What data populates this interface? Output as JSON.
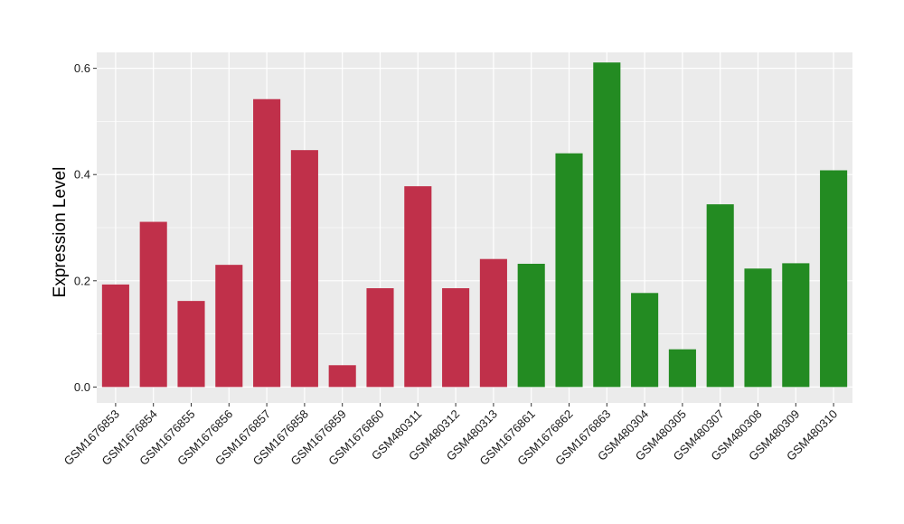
{
  "chart_data": {
    "type": "bar",
    "title": "",
    "xlabel": "",
    "ylabel": "Expression Level",
    "ylim": [
      -0.03,
      0.63
    ],
    "yticks": [
      0.0,
      0.2,
      0.4,
      0.6
    ],
    "ytick_labels": [
      "0.0",
      "0.2",
      "0.4",
      "0.6"
    ],
    "grid": true,
    "legend": "none",
    "categories": [
      "GSM1676853",
      "GSM1676854",
      "GSM1676855",
      "GSM1676856",
      "GSM1676857",
      "GSM1676858",
      "GSM1676859",
      "GSM1676860",
      "GSM480311",
      "GSM480312",
      "GSM480313",
      "GSM1676861",
      "GSM1676862",
      "GSM1676863",
      "GSM480304",
      "GSM480305",
      "GSM480307",
      "GSM480308",
      "GSM480309",
      "GSM480310"
    ],
    "values": [
      0.193,
      0.311,
      0.162,
      0.23,
      0.542,
      0.446,
      0.041,
      0.186,
      0.378,
      0.186,
      0.241,
      0.232,
      0.44,
      0.611,
      0.177,
      0.071,
      0.344,
      0.223,
      0.233,
      0.408
    ],
    "group_colors": {
      "group_1": "#c0304a",
      "group_2": "#238b22"
    },
    "bar_groups": [
      "group_1",
      "group_1",
      "group_1",
      "group_1",
      "group_1",
      "group_1",
      "group_1",
      "group_1",
      "group_1",
      "group_1",
      "group_1",
      "group_2",
      "group_2",
      "group_2",
      "group_2",
      "group_2",
      "group_2",
      "group_2",
      "group_2",
      "group_2"
    ],
    "panel_background": "#ebebeb",
    "grid_color": "#ffffff"
  }
}
